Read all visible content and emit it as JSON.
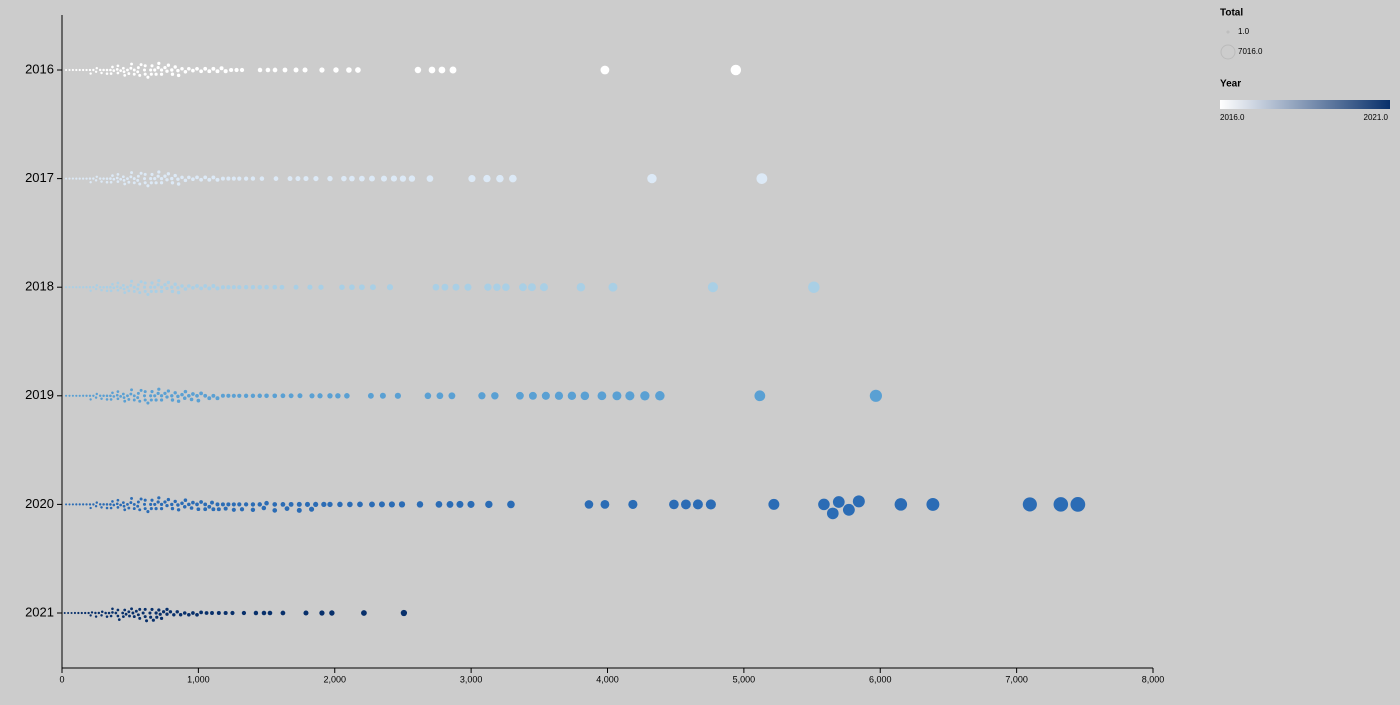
{
  "chart_data": {
    "type": "beeswarm",
    "xlim": [
      0,
      8000
    ],
    "xticks": [
      0,
      {
        "value": 1000,
        "label": "1,000"
      },
      {
        "value": 2000,
        "label": "2,000"
      },
      {
        "value": 3000,
        "label": "3,000"
      },
      {
        "value": 4000,
        "label": "4,000"
      },
      {
        "value": 5000,
        "label": "5,000"
      },
      {
        "value": 6000,
        "label": "6,000"
      },
      {
        "value": 7000,
        "label": "7,000"
      },
      {
        "value": 8000,
        "label": "8,000"
      }
    ],
    "size_legend": {
      "title": "Total",
      "items": [
        {
          "value": 1,
          "label": "1.0"
        },
        {
          "value": 7016,
          "label": "7016.0"
        }
      ]
    },
    "color_legend": {
      "title": "Year",
      "min": {
        "value": 2016,
        "label": "2016.0"
      },
      "max": {
        "value": 2021,
        "label": "2021.0"
      },
      "colors": [
        "#ffffff",
        "#08306b"
      ]
    },
    "series": [
      {
        "name": "2016",
        "color": "#ffffff",
        "values": [
          30,
          55,
          80,
          105,
          130,
          155,
          180,
          205,
          230,
          255,
          280,
          305,
          330,
          355,
          380,
          405,
          430,
          455,
          480,
          505,
          530,
          555,
          580,
          605,
          630,
          655,
          680,
          705,
          730,
          755,
          780,
          805,
          830,
          855,
          880,
          905,
          930,
          960,
          990,
          1020,
          1050,
          1080,
          1110,
          1140,
          1170,
          1200,
          1240,
          1280,
          1320,
          210,
          250,
          290,
          330,
          370,
          410,
          450,
          490,
          530,
          570,
          610,
          650,
          690,
          730,
          770,
          810,
          850,
          360,
          410,
          460,
          510,
          560,
          610,
          660,
          710,
          1452,
          1510,
          1562,
          1635,
          1716,
          1782,
          1906,
          2009,
          2104,
          2170,
          2610,
          2713,
          2786,
          2867,
          3981,
          4941
        ]
      },
      {
        "name": "2017",
        "color": "#dce9f6",
        "values": [
          30,
          55,
          80,
          105,
          130,
          155,
          180,
          205,
          230,
          255,
          280,
          305,
          330,
          355,
          380,
          405,
          430,
          455,
          480,
          505,
          530,
          555,
          580,
          605,
          630,
          655,
          680,
          705,
          730,
          755,
          780,
          805,
          830,
          855,
          880,
          905,
          930,
          960,
          990,
          1020,
          1050,
          1080,
          1110,
          1140,
          1180,
          1220,
          1260,
          1300,
          1350,
          1400,
          210,
          250,
          290,
          330,
          370,
          410,
          450,
          490,
          530,
          570,
          610,
          650,
          690,
          730,
          770,
          810,
          850,
          360,
          410,
          460,
          510,
          560,
          610,
          660,
          710,
          1466,
          1569,
          1672,
          1730,
          1789,
          1862,
          1965,
          2067,
          2126,
          2199,
          2273,
          2361,
          2434,
          2500,
          2566,
          2698,
          3006,
          3116,
          3211,
          3306,
          4326,
          5132
        ]
      },
      {
        "name": "2018",
        "color": "#a9cfe5",
        "values": [
          30,
          55,
          80,
          105,
          130,
          155,
          180,
          205,
          230,
          255,
          280,
          305,
          330,
          355,
          380,
          405,
          430,
          455,
          480,
          505,
          530,
          555,
          580,
          605,
          630,
          655,
          680,
          705,
          730,
          755,
          780,
          805,
          830,
          855,
          880,
          905,
          930,
          960,
          990,
          1020,
          1050,
          1080,
          1110,
          1140,
          1180,
          1220,
          1260,
          1300,
          1350,
          1400,
          1450,
          1500,
          1560,
          210,
          250,
          290,
          330,
          370,
          410,
          450,
          490,
          530,
          570,
          610,
          650,
          690,
          730,
          770,
          810,
          850,
          360,
          410,
          460,
          510,
          560,
          610,
          660,
          710,
          1613,
          1716,
          1818,
          1899,
          2053,
          2126,
          2199,
          2280,
          2405,
          2742,
          2808,
          2889,
          2977,
          3123,
          3189,
          3255,
          3380,
          3446,
          3534,
          3805,
          4040,
          4773,
          5513
        ]
      },
      {
        "name": "2019",
        "color": "#5aa0d3",
        "values": [
          30,
          55,
          80,
          105,
          130,
          155,
          180,
          205,
          230,
          255,
          280,
          305,
          330,
          355,
          380,
          405,
          430,
          455,
          480,
          505,
          530,
          555,
          580,
          605,
          630,
          655,
          680,
          705,
          730,
          755,
          780,
          805,
          830,
          855,
          880,
          905,
          930,
          960,
          990,
          1020,
          1050,
          1080,
          1110,
          1140,
          1180,
          1220,
          1260,
          1300,
          1350,
          1400,
          1450,
          1500,
          1560,
          1620,
          1680,
          210,
          250,
          290,
          330,
          370,
          410,
          450,
          490,
          530,
          570,
          610,
          650,
          690,
          730,
          770,
          810,
          850,
          900,
          950,
          1000,
          360,
          410,
          460,
          510,
          560,
          610,
          660,
          710,
          1745,
          1833,
          1892,
          1965,
          2023,
          2089,
          2265,
          2353,
          2463,
          2683,
          2771,
          2859,
          3079,
          3174,
          3358,
          3453,
          3548,
          3644,
          3739,
          3834,
          3959,
          4069,
          4164,
          4274,
          4384,
          5117,
          5968
        ]
      },
      {
        "name": "2020",
        "color": "#2b6cb5",
        "values": [
          30,
          55,
          80,
          105,
          130,
          155,
          180,
          205,
          230,
          255,
          280,
          305,
          330,
          355,
          380,
          405,
          430,
          455,
          480,
          505,
          530,
          555,
          580,
          605,
          630,
          655,
          680,
          705,
          730,
          755,
          780,
          805,
          830,
          855,
          880,
          905,
          930,
          960,
          990,
          1020,
          1050,
          1080,
          1110,
          1140,
          1180,
          1220,
          1260,
          1300,
          1350,
          1400,
          1450,
          1500,
          1560,
          1620,
          1680,
          1740,
          1800,
          1860,
          1920,
          210,
          250,
          290,
          330,
          370,
          410,
          450,
          490,
          530,
          570,
          610,
          650,
          690,
          730,
          770,
          810,
          850,
          900,
          950,
          1000,
          1050,
          1100,
          1150,
          1200,
          1260,
          1320,
          1400,
          1480,
          1560,
          1650,
          1740,
          1830,
          360,
          410,
          460,
          510,
          560,
          610,
          660,
          710,
          1965,
          2038,
          2111,
          2185,
          2273,
          2346,
          2419,
          2493,
          2625,
          2764,
          2845,
          2918,
          2999,
          3130,
          3292,
          3864,
          3981,
          4186,
          4487,
          4575,
          4663,
          4758,
          5220,
          5587,
          5652,
          5696,
          5770,
          5843,
          6151,
          6386,
          7097,
          7324,
          7449
        ]
      },
      {
        "name": "2021",
        "color": "#08306b",
        "values": [
          20,
          45,
          70,
          95,
          120,
          145,
          170,
          195,
          220,
          245,
          270,
          295,
          320,
          345,
          370,
          395,
          420,
          445,
          470,
          495,
          520,
          545,
          570,
          595,
          620,
          645,
          670,
          695,
          720,
          745,
          770,
          795,
          820,
          845,
          870,
          900,
          930,
          960,
          990,
          1020,
          1060,
          1100,
          1150,
          1200,
          1250,
          210,
          250,
          290,
          330,
          370,
          410,
          450,
          490,
          530,
          570,
          610,
          650,
          690,
          730,
          770,
          360,
          410,
          460,
          510,
          560,
          610,
          660,
          710,
          1334,
          1422,
          1481,
          1525,
          1620,
          1789,
          1906,
          1979,
          2214,
          2507
        ]
      }
    ]
  }
}
